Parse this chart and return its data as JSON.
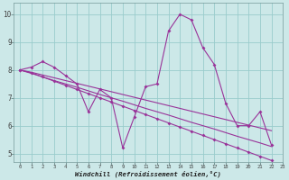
{
  "xlabel": "Windchill (Refroidissement éolien,°C)",
  "background_color": "#cce8e8",
  "line_color": "#993399",
  "grid_color": "#99cccc",
  "xlim": [
    -0.5,
    23.0
  ],
  "ylim": [
    4.7,
    10.4
  ],
  "xticks": [
    0,
    1,
    2,
    3,
    4,
    5,
    6,
    7,
    8,
    9,
    10,
    11,
    12,
    13,
    14,
    15,
    16,
    17,
    18,
    19,
    20,
    21,
    22,
    23
  ],
  "yticks": [
    5,
    6,
    7,
    8,
    9,
    10
  ],
  "y_main": [
    8.0,
    8.1,
    8.3,
    8.1,
    7.8,
    7.5,
    6.5,
    7.3,
    7.0,
    5.2,
    6.3,
    7.4,
    7.5,
    9.4,
    10.0,
    9.8,
    8.8,
    8.2,
    6.8,
    6.0,
    6.0,
    6.5,
    5.3
  ],
  "y_trend1": [
    8.0,
    7.9,
    7.75,
    7.6,
    7.45,
    7.3,
    7.15,
    7.0,
    6.85,
    6.7,
    6.55,
    6.4,
    6.25,
    6.1,
    5.95,
    5.8,
    5.65,
    5.5,
    5.35,
    5.2,
    5.05,
    4.9,
    4.75
  ],
  "y_trend2": [
    8.0,
    7.92,
    7.82,
    7.72,
    7.62,
    7.52,
    7.42,
    7.32,
    7.22,
    7.12,
    7.02,
    6.92,
    6.82,
    6.72,
    6.62,
    6.52,
    6.42,
    6.32,
    6.22,
    6.12,
    6.02,
    5.92,
    5.82
  ],
  "y_trend3": [
    8.0,
    7.88,
    7.75,
    7.62,
    7.5,
    7.38,
    7.25,
    7.12,
    7.0,
    6.88,
    6.75,
    6.62,
    6.5,
    6.38,
    6.25,
    6.12,
    6.0,
    5.88,
    5.75,
    5.62,
    5.5,
    5.38,
    5.25
  ]
}
